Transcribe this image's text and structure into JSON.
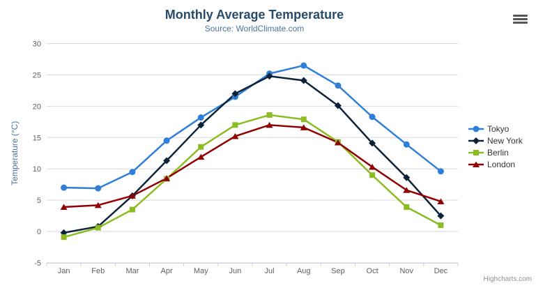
{
  "chart_data": {
    "type": "line",
    "title": "Monthly Average Temperature",
    "subtitle": "Source: WorldClimate.com",
    "categories": [
      "Jan",
      "Feb",
      "Mar",
      "Apr",
      "May",
      "Jun",
      "Jul",
      "Aug",
      "Sep",
      "Oct",
      "Nov",
      "Dec"
    ],
    "xlabel": "",
    "ylabel": "Temperature (°C)",
    "ylim": [
      -5,
      30
    ],
    "ytick_step": 5,
    "grid": true,
    "legend_position": "right",
    "series": [
      {
        "name": "Tokyo",
        "color": "#2f7ed8",
        "marker": "circle",
        "values": [
          7.0,
          6.9,
          9.5,
          14.5,
          18.2,
          21.5,
          25.2,
          26.5,
          23.3,
          18.3,
          13.9,
          9.6
        ]
      },
      {
        "name": "New York",
        "color": "#0d233a",
        "marker": "diamond",
        "values": [
          -0.2,
          0.8,
          5.7,
          11.3,
          17.0,
          22.0,
          24.8,
          24.1,
          20.1,
          14.1,
          8.6,
          2.5
        ]
      },
      {
        "name": "Berlin",
        "color": "#8bbc21",
        "marker": "square",
        "values": [
          -0.9,
          0.6,
          3.5,
          8.4,
          13.5,
          17.0,
          18.6,
          17.9,
          14.3,
          9.0,
          3.9,
          1.0
        ]
      },
      {
        "name": "London",
        "color": "#910000",
        "marker": "triangle",
        "values": [
          3.9,
          4.2,
          5.7,
          8.5,
          11.9,
          15.2,
          17.0,
          16.6,
          14.2,
          10.3,
          6.6,
          4.8
        ]
      }
    ],
    "credits": "Highcharts.com",
    "colors": {
      "title": "#274b6d",
      "subtitle": "#4d759e",
      "axis_title": "#4d759e",
      "axis_labels": "#606060",
      "gridline": "#d8d8d8",
      "axis_line": "#c0d0e0",
      "legend_text": "#333333",
      "credits_text": "#909090"
    }
  }
}
